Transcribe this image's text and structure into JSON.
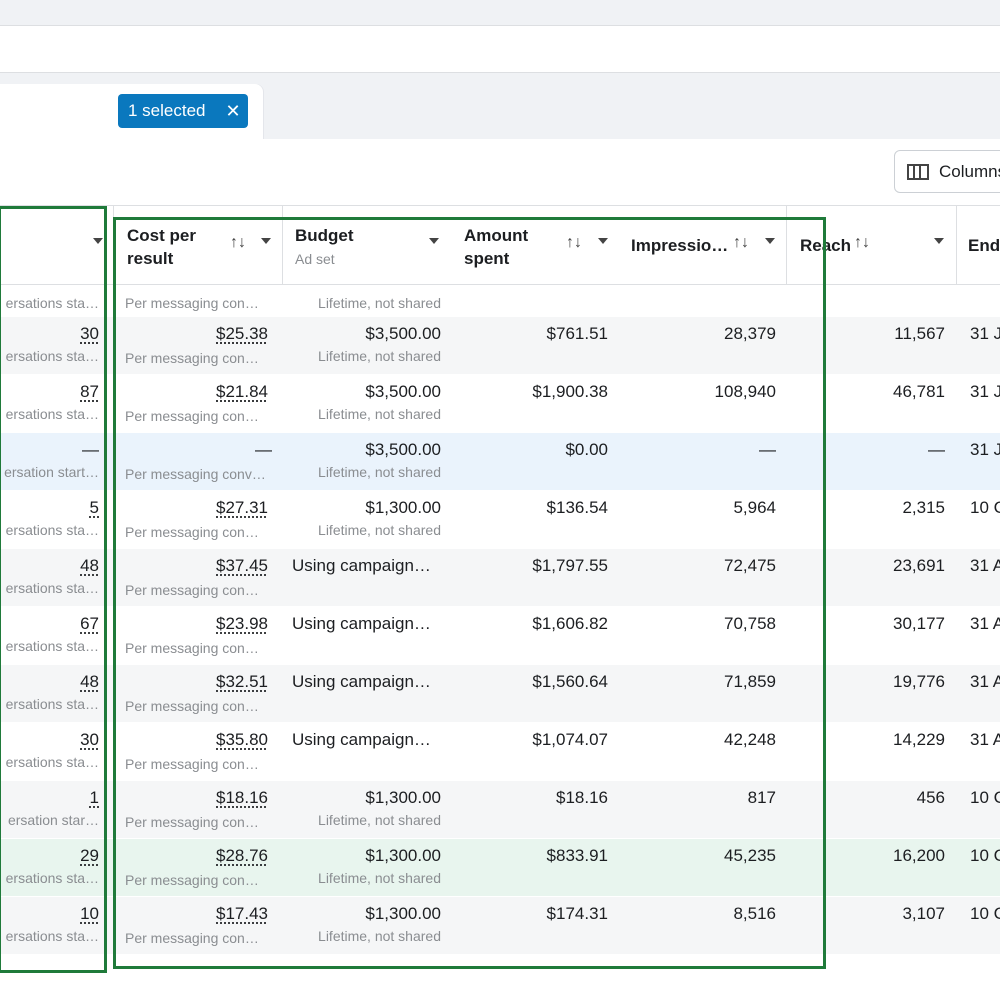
{
  "filter": {
    "chip_label": "1 selected",
    "chip_close": "✕"
  },
  "toolbar": {
    "columns_label": "Columns"
  },
  "headers": {
    "cost_per_result": [
      "Cost per",
      "result"
    ],
    "budget": "Budget",
    "budget_sub": "Ad set",
    "amount_spent": [
      "Amount",
      "spent"
    ],
    "impressions": "Impressio…",
    "reach": "Reach",
    "ends": "End",
    "sort_glyph": "↑↓"
  },
  "rows": [
    {
      "results": "",
      "results_sub": "ersations sta…",
      "cpr": "",
      "cpr_sub": "Per messaging con…",
      "budget": "",
      "budget_sub": "Lifetime, not shared",
      "spent": "",
      "impr": "",
      "reach": "",
      "end": ""
    },
    {
      "results": "30",
      "results_sub": "ersations sta…",
      "cpr": "$25.38",
      "cpr_sub": "Per messaging con…",
      "budget": "$3,500.00",
      "budget_sub": "Lifetime, not shared",
      "spent": "$761.51",
      "impr": "28,379",
      "reach": "11,567",
      "end": "31 J"
    },
    {
      "results": "87",
      "results_sub": "ersations sta…",
      "cpr": "$21.84",
      "cpr_sub": "Per messaging con…",
      "budget": "$3,500.00",
      "budget_sub": "Lifetime, not shared",
      "spent": "$1,900.38",
      "impr": "108,940",
      "reach": "46,781",
      "end": "31 J"
    },
    {
      "results": "—",
      "results_sub": "ersation start…",
      "cpr": "—",
      "cpr_sub": "Per messaging conv…",
      "budget": "$3,500.00",
      "budget_sub": "Lifetime, not shared",
      "spent": "$0.00",
      "impr": "—",
      "reach": "—",
      "end": "31 J"
    },
    {
      "results": "5",
      "results_sub": "ersations sta…",
      "cpr": "$27.31",
      "cpr_sub": "Per messaging con…",
      "budget": "$1,300.00",
      "budget_sub": "Lifetime, not shared",
      "spent": "$136.54",
      "impr": "5,964",
      "reach": "2,315",
      "end": "10 C"
    },
    {
      "results": "48",
      "results_sub": "ersations sta…",
      "cpr": "$37.45",
      "cpr_sub": "Per messaging con…",
      "budget": "Using campaign…",
      "budget_sub": "",
      "spent": "$1,797.55",
      "impr": "72,475",
      "reach": "23,691",
      "end": "31 A"
    },
    {
      "results": "67",
      "results_sub": "ersations sta…",
      "cpr": "$23.98",
      "cpr_sub": "Per messaging con…",
      "budget": "Using campaign…",
      "budget_sub": "",
      "spent": "$1,606.82",
      "impr": "70,758",
      "reach": "30,177",
      "end": "31 A"
    },
    {
      "results": "48",
      "results_sub": "ersations sta…",
      "cpr": "$32.51",
      "cpr_sub": "Per messaging con…",
      "budget": "Using campaign…",
      "budget_sub": "",
      "spent": "$1,560.64",
      "impr": "71,859",
      "reach": "19,776",
      "end": "31 A"
    },
    {
      "results": "30",
      "results_sub": "ersations sta…",
      "cpr": "$35.80",
      "cpr_sub": "Per messaging con…",
      "budget": "Using campaign…",
      "budget_sub": "",
      "spent": "$1,074.07",
      "impr": "42,248",
      "reach": "14,229",
      "end": "31 A"
    },
    {
      "results": "1",
      "results_sub": "ersation star…",
      "cpr": "$18.16",
      "cpr_sub": "Per messaging con…",
      "budget": "$1,300.00",
      "budget_sub": "Lifetime, not shared",
      "spent": "$18.16",
      "impr": "817",
      "reach": "456",
      "end": "10 C"
    },
    {
      "results": "29",
      "results_sub": "ersations sta…",
      "cpr": "$28.76",
      "cpr_sub": "Per messaging con…",
      "budget": "$1,300.00",
      "budget_sub": "Lifetime, not shared",
      "spent": "$833.91",
      "impr": "45,235",
      "reach": "16,200",
      "end": "10 C"
    },
    {
      "results": "10",
      "results_sub": "ersations sta…",
      "cpr": "$17.43",
      "cpr_sub": "Per messaging con…",
      "budget": "$1,300.00",
      "budget_sub": "Lifetime, not shared",
      "spent": "$174.31",
      "impr": "8,516",
      "reach": "3,107",
      "end": "10 C"
    }
  ]
}
